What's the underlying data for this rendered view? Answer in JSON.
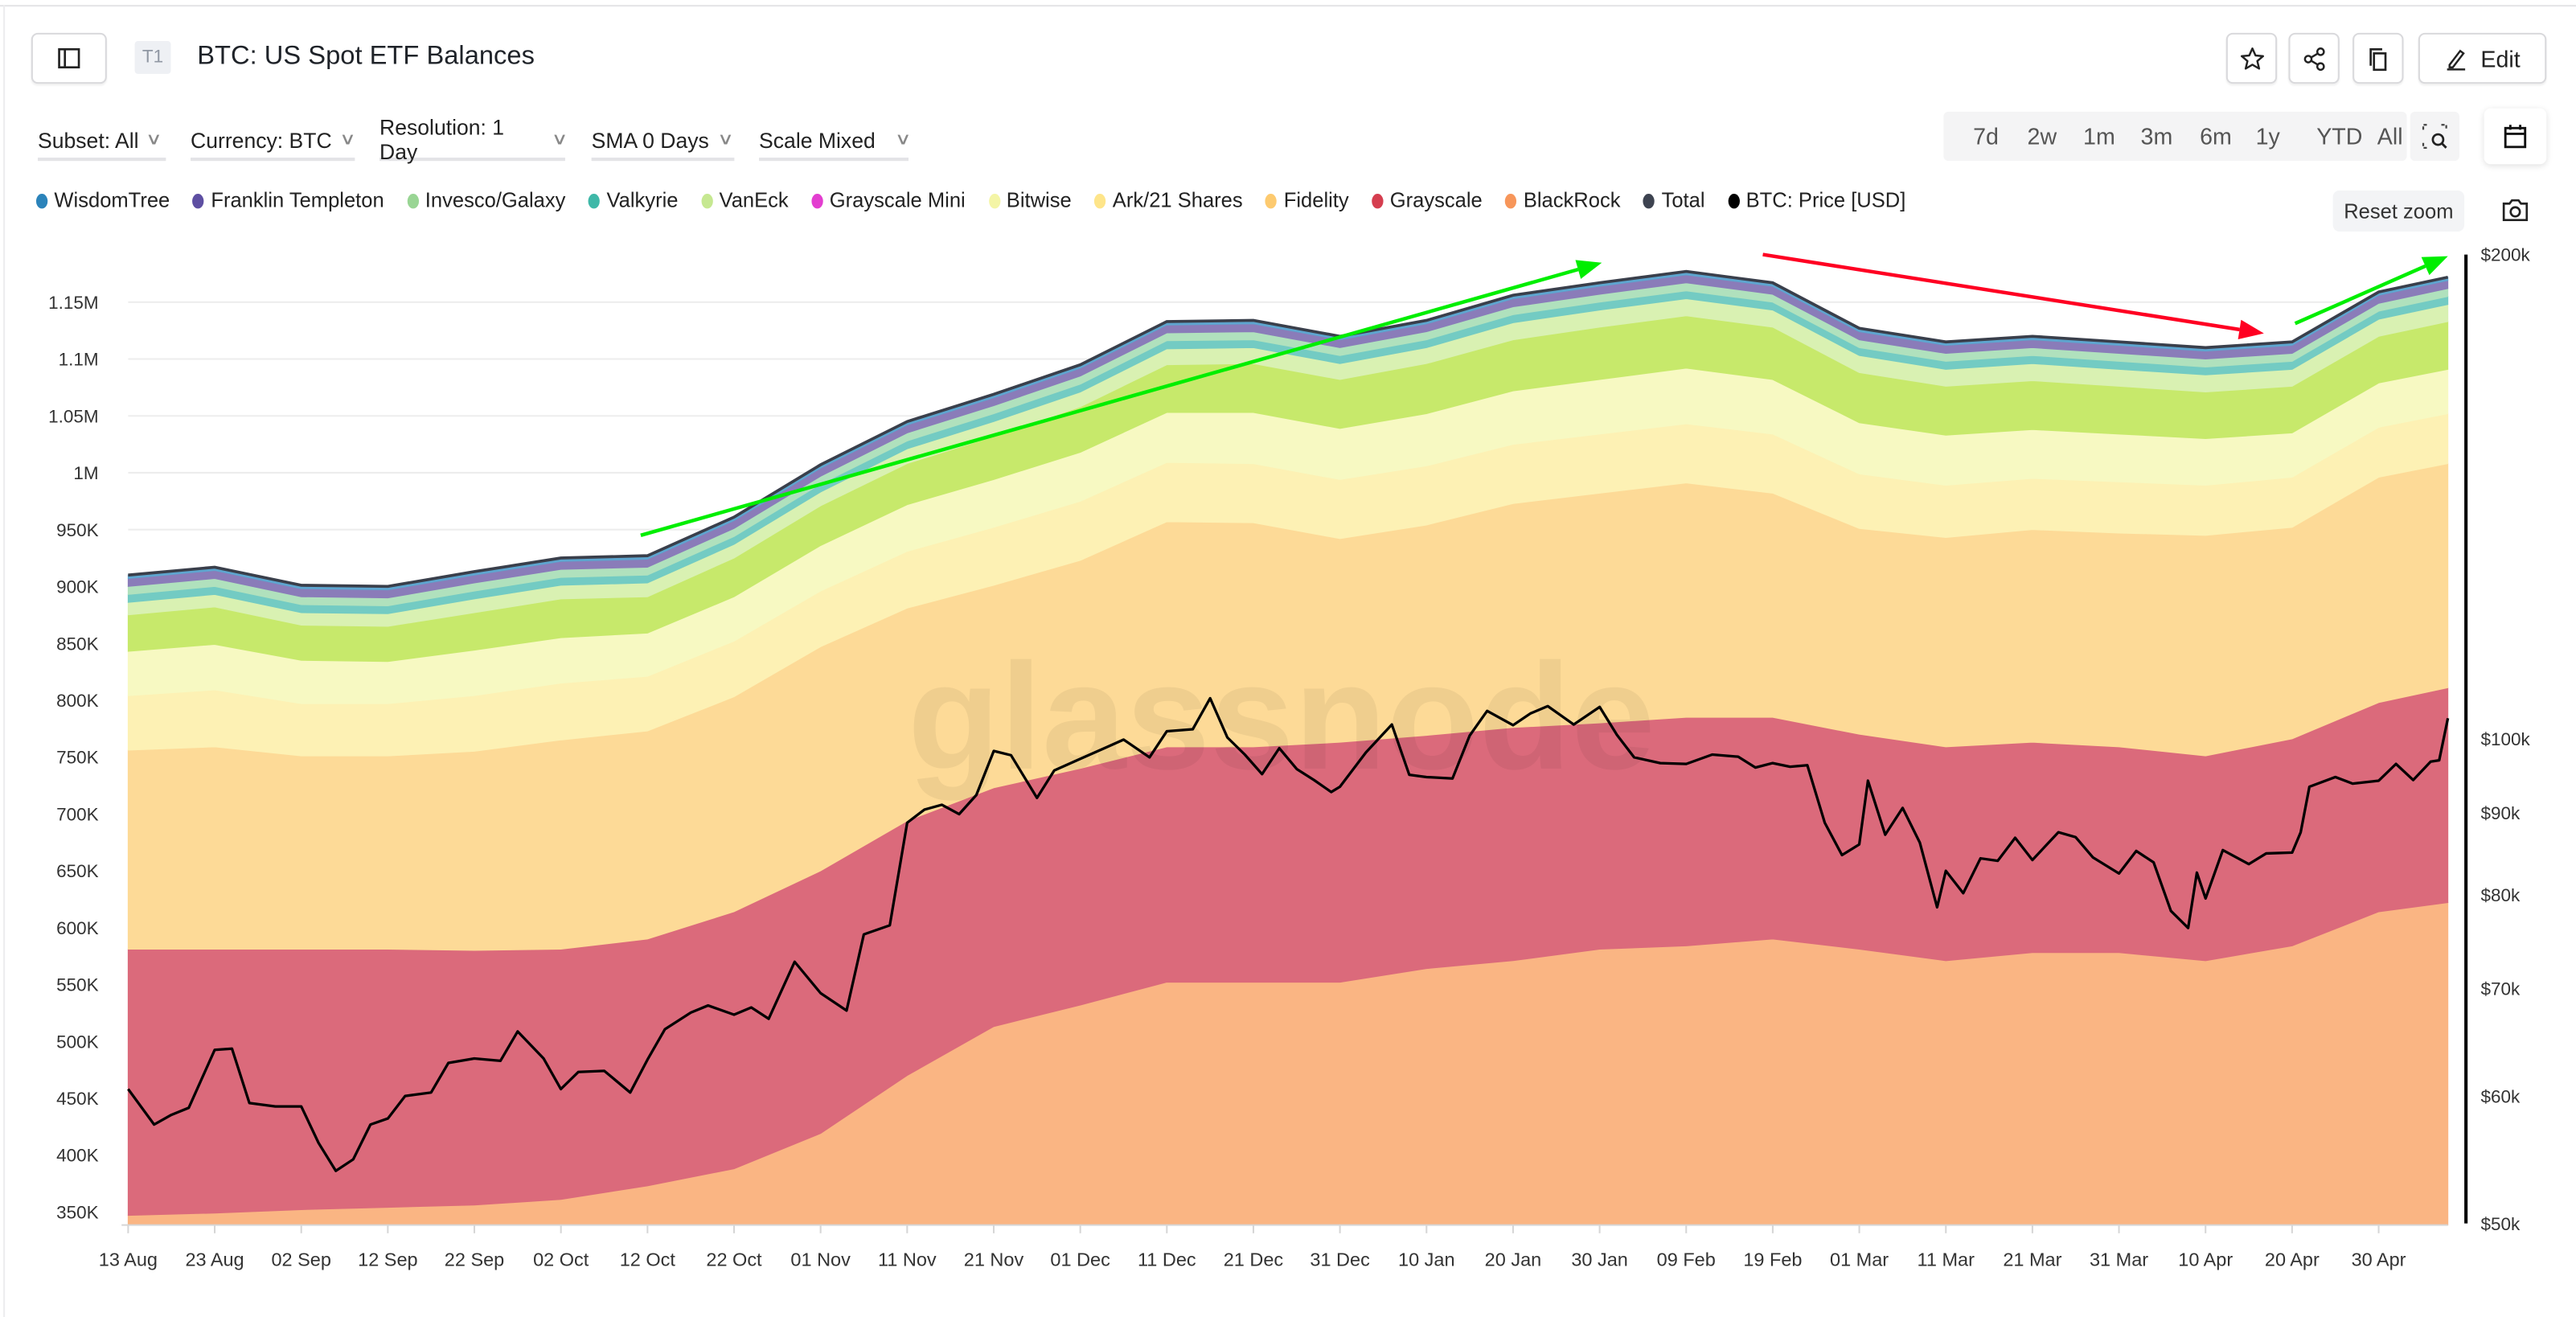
{
  "header": {
    "badge": "T1",
    "title": "BTC: US Spot ETF Balances",
    "edit_label": "Edit",
    "icons": [
      "sidebar-toggle-icon",
      "star-icon",
      "share-icon",
      "copy-icon",
      "pencil-icon"
    ]
  },
  "filters": [
    {
      "label": "Subset: All"
    },
    {
      "label": "Currency: BTC"
    },
    {
      "label": "Resolution: 1 Day"
    },
    {
      "label": "SMA 0 Days"
    },
    {
      "label": "Scale Mixed"
    }
  ],
  "time_ranges": [
    "7d",
    "2w",
    "1m",
    "3m",
    "6m",
    "1y",
    "YTD",
    "All"
  ],
  "reset_zoom_label": "Reset zoom",
  "legend": [
    {
      "name": "WisdomTree",
      "color": "#2b83ba"
    },
    {
      "name": "Franklin Templeton",
      "color": "#5e4fa2"
    },
    {
      "name": "Invesco/Galaxy",
      "color": "#99d594"
    },
    {
      "name": "Valkyrie",
      "color": "#3fb8a8"
    },
    {
      "name": "VanEck",
      "color": "#c6e891"
    },
    {
      "name": "Grayscale Mini",
      "color": "#e33ed0"
    },
    {
      "name": "Bitwise",
      "color": "#f4f5a6"
    },
    {
      "name": "Ark/21 Shares",
      "color": "#fee58a"
    },
    {
      "name": "Fidelity",
      "color": "#fdca6f"
    },
    {
      "name": "Grayscale",
      "color": "#d53e4f"
    },
    {
      "name": "BlackRock",
      "color": "#f7965a"
    },
    {
      "name": "Total",
      "color": "#3d4350"
    },
    {
      "name": "BTC: Price [USD]",
      "color": "#000000"
    }
  ],
  "watermark": "glassnode",
  "chart_data": {
    "type": "area",
    "stacked": true,
    "title": "BTC: US Spot ETF Balances",
    "left_axis": {
      "unit": "BTC",
      "ticks": [
        "350K",
        "400K",
        "450K",
        "500K",
        "550K",
        "600K",
        "650K",
        "700K",
        "750K",
        "800K",
        "850K",
        "900K",
        "950K",
        "1M",
        "1.05M",
        "1.1M",
        "1.15M"
      ],
      "range_thousands": [
        340,
        1190
      ]
    },
    "right_axis": {
      "unit": "USD",
      "scale": "log",
      "ticks": [
        "$50k",
        "$60k",
        "$70k",
        "$80k",
        "$90k",
        "$100k",
        "$200k"
      ],
      "range": [
        50000,
        200000
      ]
    },
    "x_ticks": [
      "13 Aug",
      "23 Aug",
      "02 Sep",
      "12 Sep",
      "22 Sep",
      "02 Oct",
      "12 Oct",
      "22 Oct",
      "01 Nov",
      "11 Nov",
      "21 Nov",
      "01 Dec",
      "11 Dec",
      "21 Dec",
      "31 Dec",
      "10 Jan",
      "20 Jan",
      "30 Jan",
      "09 Feb",
      "19 Feb",
      "01 Mar",
      "11 Mar",
      "21 Mar",
      "31 Mar",
      "10 Apr",
      "20 Apr",
      "30 Apr"
    ],
    "grid": true,
    "legend_position": "top",
    "dates": [
      "2024-08-13",
      "2024-08-23",
      "2024-09-02",
      "2024-09-12",
      "2024-09-22",
      "2024-10-02",
      "2024-10-12",
      "2024-10-22",
      "2024-11-01",
      "2024-11-11",
      "2024-11-21",
      "2024-12-01",
      "2024-12-11",
      "2024-12-21",
      "2024-12-31",
      "2025-01-10",
      "2025-01-20",
      "2025-01-30",
      "2025-02-09",
      "2025-02-19",
      "2025-03-01",
      "2025-03-11",
      "2025-03-21",
      "2025-03-31",
      "2025-04-10",
      "2025-04-20",
      "2025-04-30",
      "2025-05-08"
    ],
    "series_unit": "thousand BTC",
    "series": [
      {
        "name": "BlackRock",
        "area_color": "#fab583",
        "values": [
          347,
          349,
          352,
          354,
          356,
          361,
          373,
          388,
          419,
          470,
          513,
          532,
          552,
          552,
          552,
          564,
          571,
          581,
          584,
          590,
          581,
          571,
          578,
          578,
          571,
          584,
          614,
          622
        ]
      },
      {
        "name": "Grayscale",
        "area_color": "#db6a7b",
        "values": [
          234,
          232,
          229,
          227,
          224,
          220,
          217,
          226,
          231,
          224,
          210,
          208,
          207,
          207,
          211,
          205,
          205,
          199,
          201,
          195,
          189,
          188,
          185,
          181,
          180,
          182,
          184,
          189
        ]
      },
      {
        "name": "Fidelity",
        "area_color": "#fdda97",
        "values": [
          175,
          178,
          170,
          170,
          175,
          184,
          183,
          189,
          197,
          187,
          178,
          183,
          198,
          197,
          179,
          185,
          197,
          202,
          206,
          197,
          181,
          184,
          187,
          188,
          194,
          186,
          198,
          197
        ]
      },
      {
        "name": "Ark/21 Shares",
        "area_color": "#fdf1b4",
        "values": [
          48,
          50,
          46,
          46,
          49,
          50,
          48,
          49,
          49,
          50,
          51,
          52,
          52,
          52,
          52,
          52,
          52,
          52,
          52,
          52,
          48,
          46,
          45,
          45,
          44,
          44,
          44,
          44
        ]
      },
      {
        "name": "Bitwise",
        "area_color": "#f7f9c2",
        "values": [
          39,
          40,
          38,
          37,
          40,
          40,
          38,
          39,
          40,
          41,
          42,
          43,
          44,
          45,
          45,
          46,
          47,
          48,
          49,
          48,
          45,
          44,
          43,
          42,
          41,
          39,
          39,
          39
        ]
      },
      {
        "name": "Grayscale Mini",
        "area_color": "#c7e96b",
        "values": [
          32,
          33,
          31,
          31,
          33,
          34,
          32,
          34,
          35,
          36,
          38,
          40,
          42,
          43,
          43,
          44,
          45,
          46,
          46,
          46,
          44,
          43,
          43,
          42,
          41,
          41,
          41,
          42
        ]
      },
      {
        "name": "VanEck",
        "area_color": "#d9f1b2",
        "values": [
          11,
          11,
          11,
          11,
          12,
          12,
          12,
          12,
          12,
          13,
          13,
          13,
          14,
          14,
          14,
          14,
          15,
          15,
          15,
          15,
          15,
          15,
          15,
          15,
          15,
          15,
          15,
          15
        ]
      },
      {
        "name": "Valkyrie",
        "area_color": "#73cbc3",
        "values": [
          7,
          7,
          7,
          7,
          7,
          7,
          7,
          7,
          7,
          7,
          7,
          7,
          7,
          7,
          7,
          7,
          7,
          7,
          7,
          7,
          7,
          7,
          7,
          7,
          7,
          7,
          7,
          7
        ]
      },
      {
        "name": "Invesco/Galaxy",
        "area_color": "#b0e1bd",
        "values": [
          7,
          7,
          7,
          7,
          7,
          7,
          7,
          7,
          7,
          7,
          7,
          7,
          7,
          7,
          7,
          7,
          7,
          7,
          7,
          7,
          7,
          7,
          7,
          7,
          7,
          7,
          7,
          7
        ]
      },
      {
        "name": "Franklin Templeton",
        "area_color": "#8a7cb9",
        "values": [
          7,
          7,
          7,
          7,
          7,
          7,
          7,
          7,
          7,
          7,
          7,
          7,
          7,
          7,
          7,
          7,
          7,
          7,
          7,
          7,
          7,
          7,
          7,
          7,
          7,
          7,
          7,
          7
        ]
      },
      {
        "name": "WisdomTree",
        "area_color": "#5ea5cf",
        "values": [
          3,
          3,
          3,
          3,
          3,
          3,
          3,
          3,
          3,
          3,
          3,
          3,
          3,
          3,
          3,
          3,
          3,
          3,
          3,
          3,
          3,
          3,
          3,
          3,
          3,
          3,
          3,
          3
        ]
      }
    ],
    "total": {
      "name": "Total",
      "color": "#3a3f4b"
    },
    "price": {
      "name": "BTC: Price [USD]",
      "color": "#000000",
      "points": [
        [
          "2024-08-13",
          60600
        ],
        [
          "2024-08-16",
          57600
        ],
        [
          "2024-08-18",
          58400
        ],
        [
          "2024-08-20",
          59000
        ],
        [
          "2024-08-23",
          64100
        ],
        [
          "2024-08-25",
          64200
        ],
        [
          "2024-08-27",
          59400
        ],
        [
          "2024-08-30",
          59100
        ],
        [
          "2024-09-02",
          59100
        ],
        [
          "2024-09-04",
          56100
        ],
        [
          "2024-09-06",
          53900
        ],
        [
          "2024-09-08",
          54800
        ],
        [
          "2024-09-10",
          57600
        ],
        [
          "2024-09-12",
          58100
        ],
        [
          "2024-09-14",
          60000
        ],
        [
          "2024-09-17",
          60300
        ],
        [
          "2024-09-19",
          62900
        ],
        [
          "2024-09-22",
          63300
        ],
        [
          "2024-09-25",
          63100
        ],
        [
          "2024-09-27",
          65800
        ],
        [
          "2024-09-30",
          63300
        ],
        [
          "2024-10-02",
          60600
        ],
        [
          "2024-10-04",
          62100
        ],
        [
          "2024-10-07",
          62200
        ],
        [
          "2024-10-10",
          60300
        ],
        [
          "2024-10-12",
          63200
        ],
        [
          "2024-10-14",
          66000
        ],
        [
          "2024-10-17",
          67600
        ],
        [
          "2024-10-19",
          68300
        ],
        [
          "2024-10-22",
          67400
        ],
        [
          "2024-10-24",
          68100
        ],
        [
          "2024-10-26",
          67000
        ],
        [
          "2024-10-29",
          72700
        ],
        [
          "2024-11-01",
          69500
        ],
        [
          "2024-11-04",
          67800
        ],
        [
          "2024-11-06",
          75600
        ],
        [
          "2024-11-09",
          76600
        ],
        [
          "2024-11-11",
          88700
        ],
        [
          "2024-11-13",
          90400
        ],
        [
          "2024-11-15",
          91000
        ],
        [
          "2024-11-17",
          89800
        ],
        [
          "2024-11-19",
          92300
        ],
        [
          "2024-11-21",
          98300
        ],
        [
          "2024-11-23",
          97700
        ],
        [
          "2024-11-26",
          91900
        ],
        [
          "2024-11-28",
          95600
        ],
        [
          "2024-12-01",
          97200
        ],
        [
          "2024-12-04",
          98800
        ],
        [
          "2024-12-06",
          99900
        ],
        [
          "2024-12-09",
          97400
        ],
        [
          "2024-12-11",
          101100
        ],
        [
          "2024-12-14",
          101400
        ],
        [
          "2024-12-16",
          106000
        ],
        [
          "2024-12-18",
          100200
        ],
        [
          "2024-12-20",
          97800
        ],
        [
          "2024-12-22",
          95100
        ],
        [
          "2024-12-24",
          98700
        ],
        [
          "2024-12-26",
          95800
        ],
        [
          "2024-12-28",
          94300
        ],
        [
          "2024-12-30",
          92700
        ],
        [
          "2024-12-31",
          93400
        ],
        [
          "2025-01-03",
          98100
        ],
        [
          "2025-01-06",
          102100
        ],
        [
          "2025-01-08",
          95000
        ],
        [
          "2025-01-10",
          94700
        ],
        [
          "2025-01-13",
          94500
        ],
        [
          "2025-01-15",
          100500
        ],
        [
          "2025-01-17",
          104100
        ],
        [
          "2025-01-20",
          102000
        ],
        [
          "2025-01-22",
          103700
        ],
        [
          "2025-01-24",
          104800
        ],
        [
          "2025-01-27",
          102100
        ],
        [
          "2025-01-30",
          104700
        ],
        [
          "2025-02-01",
          100600
        ],
        [
          "2025-02-03",
          97400
        ],
        [
          "2025-02-06",
          96600
        ],
        [
          "2025-02-09",
          96500
        ],
        [
          "2025-02-12",
          97800
        ],
        [
          "2025-02-15",
          97500
        ],
        [
          "2025-02-17",
          96000
        ],
        [
          "2025-02-19",
          96600
        ],
        [
          "2025-02-21",
          96100
        ],
        [
          "2025-02-23",
          96300
        ],
        [
          "2025-02-25",
          88700
        ],
        [
          "2025-02-27",
          84700
        ],
        [
          "2025-03-01",
          86000
        ],
        [
          "2025-03-02",
          94200
        ],
        [
          "2025-03-04",
          87200
        ],
        [
          "2025-03-06",
          90600
        ],
        [
          "2025-03-08",
          86200
        ],
        [
          "2025-03-10",
          78600
        ],
        [
          "2025-03-11",
          82800
        ],
        [
          "2025-03-13",
          80200
        ],
        [
          "2025-03-15",
          84300
        ],
        [
          "2025-03-17",
          84000
        ],
        [
          "2025-03-19",
          86800
        ],
        [
          "2025-03-21",
          84100
        ],
        [
          "2025-03-24",
          87500
        ],
        [
          "2025-03-26",
          86900
        ],
        [
          "2025-03-28",
          84400
        ],
        [
          "2025-03-31",
          82500
        ],
        [
          "2025-04-02",
          85200
        ],
        [
          "2025-04-04",
          83800
        ],
        [
          "2025-04-06",
          78200
        ],
        [
          "2025-04-08",
          76300
        ],
        [
          "2025-04-09",
          82600
        ],
        [
          "2025-04-10",
          79600
        ],
        [
          "2025-04-12",
          85300
        ],
        [
          "2025-04-15",
          83600
        ],
        [
          "2025-04-17",
          84900
        ],
        [
          "2025-04-20",
          85000
        ],
        [
          "2025-04-21",
          87500
        ],
        [
          "2025-04-22",
          93400
        ],
        [
          "2025-04-25",
          94700
        ],
        [
          "2025-04-27",
          93800
        ],
        [
          "2025-04-30",
          94200
        ],
        [
          "2025-05-02",
          96500
        ],
        [
          "2025-05-04",
          94300
        ],
        [
          "2025-05-06",
          96800
        ],
        [
          "2025-05-07",
          97000
        ],
        [
          "2025-05-08",
          103000
        ]
      ]
    },
    "annotations": [
      {
        "type": "arrow",
        "color": "#00ee00"
      },
      {
        "type": "arrow",
        "color": "#ff0022"
      },
      {
        "type": "arrow",
        "color": "#00ee00"
      }
    ]
  }
}
